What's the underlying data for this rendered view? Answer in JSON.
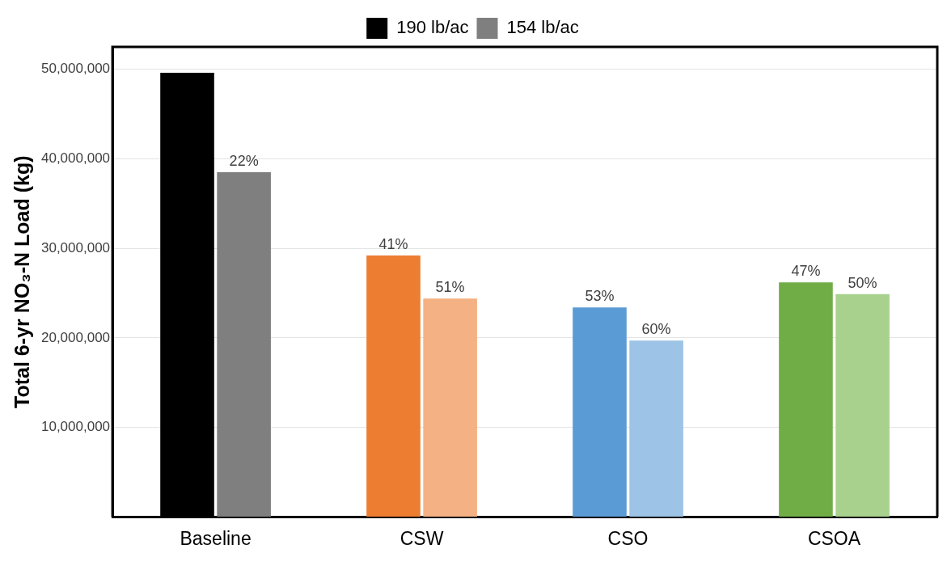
{
  "chart_data": {
    "type": "bar",
    "ylabel": "Total 6-yr NO₃-N Load (kg)",
    "categories": [
      "Baseline",
      "CSW",
      "CSO",
      "CSOA"
    ],
    "series": [
      {
        "name": "190 lb/ac",
        "color": "#000000",
        "colors": [
          "#000000",
          "#ed7d31",
          "#5b9bd5",
          "#70ad47"
        ],
        "values": [
          49600000,
          29200000,
          23400000,
          26200000
        ]
      },
      {
        "name": "154 lb/ac",
        "color": "#7f7f7f",
        "colors": [
          "#7f7f7f",
          "#f4b183",
          "#9dc3e6",
          "#a9d18e"
        ],
        "values": [
          38500000,
          24400000,
          19700000,
          24900000
        ]
      }
    ],
    "annotations": [
      {
        "text": "41%",
        "x": "CSW",
        "y": 29200000
      },
      {
        "text": "53%",
        "x": "CSO",
        "y": 23400000
      },
      {
        "text": "47%",
        "x": "CSOA",
        "y": 26200000
      },
      {
        "text": "22%",
        "x": "Baseline",
        "y": 38500000
      },
      {
        "text": "51%",
        "x": "CSW",
        "y": 24400000
      },
      {
        "text": "60%",
        "x": "CSO",
        "y": 19700000
      },
      {
        "text": "50%",
        "x": "CSOA",
        "y": 24900000
      }
    ],
    "ylim": [
      0,
      52500000
    ],
    "yticks": [
      {
        "value": 0,
        "label": null
      },
      {
        "value": 10000000,
        "label": "10,000,000"
      },
      {
        "value": 20000000,
        "label": "20,000,000"
      },
      {
        "value": 30000000,
        "label": "30,000,000"
      },
      {
        "value": 40000000,
        "label": "40,000,000"
      },
      {
        "value": 50000000,
        "label": "50,000,000"
      }
    ],
    "grid": "y",
    "legend": "top"
  }
}
